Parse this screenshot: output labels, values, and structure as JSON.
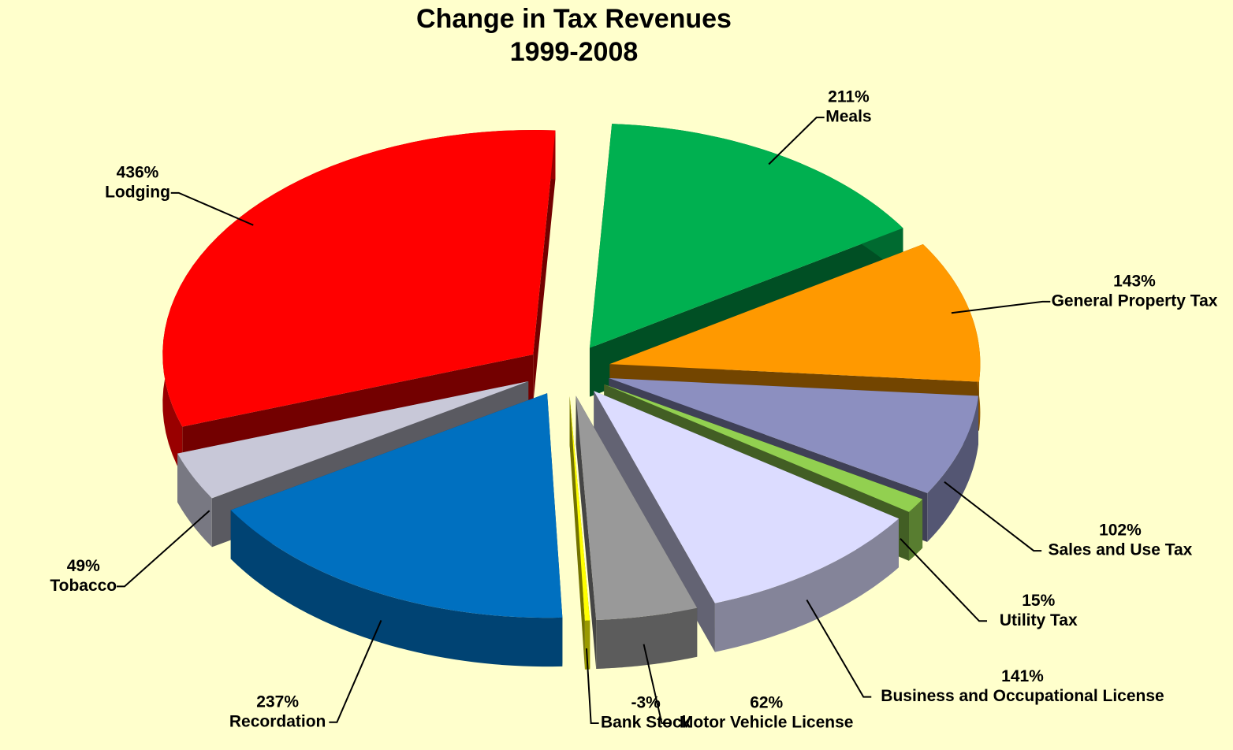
{
  "chart_data": {
    "type": "pie3d",
    "title": "Change in Tax Revenues",
    "subtitle": "1999-2008",
    "categories": [
      "Meals",
      "General Property Tax",
      "Sales and Use Tax",
      "Utility Tax",
      "Business and Occupational License",
      "Motor Vehicle License",
      "Bank Stock",
      "Recordation",
      "Tobacco",
      "Lodging"
    ],
    "values": [
      211,
      143,
      102,
      15,
      141,
      62,
      -3,
      237,
      49,
      436
    ],
    "value_labels": [
      "211%",
      "143%",
      "102%",
      "15%",
      "141%",
      "62%",
      "-3%",
      "237%",
      "49%",
      "436%"
    ],
    "colors": [
      "#00b050",
      "#ff9900",
      "#8c8fc0",
      "#92d050",
      "#dcdcff",
      "#999999",
      "#ffff00",
      "#0070c0",
      "#c8c8d8",
      "#ff0000"
    ]
  }
}
